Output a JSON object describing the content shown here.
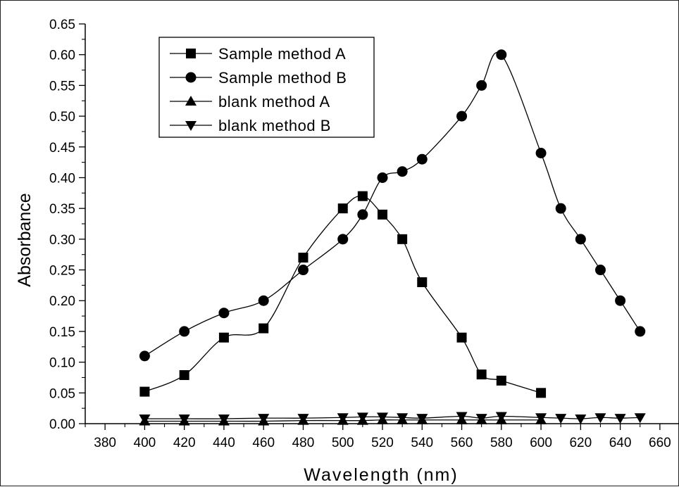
{
  "chart_data": {
    "type": "line",
    "title": "",
    "xlabel": "Wavelength (nm)",
    "ylabel": "Absorbance",
    "xlim": [
      370,
      670
    ],
    "ylim": [
      0.0,
      0.65
    ],
    "xticks": [
      380,
      400,
      420,
      440,
      460,
      480,
      500,
      520,
      540,
      560,
      580,
      600,
      620,
      640,
      660
    ],
    "xtick_labels": [
      "380",
      "400",
      "420",
      "440",
      "460",
      "480",
      "500",
      "520",
      "540",
      "560",
      "580",
      "600",
      "620",
      "640",
      "660"
    ],
    "yticks": [
      0.0,
      0.05,
      0.1,
      0.15,
      0.2,
      0.25,
      0.3,
      0.35,
      0.4,
      0.45,
      0.5,
      0.55,
      0.6,
      0.65
    ],
    "ytick_labels": [
      "0.00",
      "0.05",
      "0.10",
      "0.15",
      "0.20",
      "0.25",
      "0.30",
      "0.35",
      "0.40",
      "0.45",
      "0.50",
      "0.55",
      "0.60",
      "0.65"
    ],
    "grid": false,
    "legend_position": "top-left",
    "series": [
      {
        "name": "Sample method A",
        "marker": "square",
        "x": [
          400,
          420,
          440,
          460,
          480,
          500,
          510,
          520,
          530,
          540,
          560,
          570,
          580,
          600
        ],
        "y": [
          0.052,
          0.079,
          0.14,
          0.155,
          0.27,
          0.35,
          0.37,
          0.34,
          0.3,
          0.23,
          0.14,
          0.08,
          0.07,
          0.05
        ]
      },
      {
        "name": "Sample method B",
        "marker": "circle",
        "x": [
          400,
          420,
          440,
          460,
          480,
          500,
          510,
          520,
          530,
          540,
          560,
          570,
          580,
          600,
          610,
          620,
          630,
          640,
          650
        ],
        "y": [
          0.11,
          0.15,
          0.18,
          0.2,
          0.25,
          0.3,
          0.34,
          0.4,
          0.41,
          0.43,
          0.5,
          0.55,
          0.6,
          0.44,
          0.35,
          0.3,
          0.25,
          0.2,
          0.15
        ]
      },
      {
        "name": "blank method A",
        "marker": "triangle-up",
        "x": [
          400,
          420,
          440,
          460,
          480,
          500,
          510,
          520,
          530,
          540,
          560,
          570,
          580,
          600
        ],
        "y": [
          0.004,
          0.004,
          0.004,
          0.004,
          0.005,
          0.005,
          0.005,
          0.006,
          0.006,
          0.006,
          0.006,
          0.006,
          0.006,
          0.006
        ]
      },
      {
        "name": "blank method B",
        "marker": "triangle-down",
        "x": [
          400,
          420,
          440,
          460,
          480,
          500,
          510,
          520,
          530,
          540,
          560,
          570,
          580,
          600,
          610,
          620,
          630,
          640,
          650
        ],
        "y": [
          0.008,
          0.008,
          0.008,
          0.009,
          0.009,
          0.01,
          0.011,
          0.011,
          0.01,
          0.009,
          0.012,
          0.009,
          0.012,
          0.01,
          0.009,
          0.008,
          0.01,
          0.009,
          0.01
        ]
      }
    ]
  }
}
